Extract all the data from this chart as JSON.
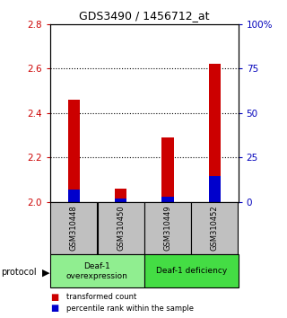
{
  "title": "GDS3490 / 1456712_at",
  "samples": [
    "GSM310448",
    "GSM310450",
    "GSM310449",
    "GSM310452"
  ],
  "red_values": [
    2.46,
    2.06,
    2.29,
    2.62
  ],
  "blue_values": [
    2.055,
    2.015,
    2.025,
    2.115
  ],
  "ylim": [
    2.0,
    2.8
  ],
  "yticks_left": [
    2.0,
    2.2,
    2.4,
    2.6,
    2.8
  ],
  "yticks_right": [
    0,
    25,
    50,
    75,
    100
  ],
  "ytick_labels_right": [
    "0",
    "25",
    "50",
    "75",
    "100%"
  ],
  "protocol_label": "protocol",
  "legend_red": "transformed count",
  "legend_blue": "percentile rank within the sample",
  "bar_width": 0.25,
  "red_color": "#CC0000",
  "blue_color": "#0000CC",
  "sample_box_color": "#C0C0C0",
  "left_tick_color": "#CC0000",
  "right_tick_color": "#0000BB",
  "base_value": 2.0,
  "group1_color": "#90EE90",
  "group2_color": "#44DD44",
  "group1_label": "Deaf-1\noverexpression",
  "group2_label": "Deaf-1 deficiency"
}
